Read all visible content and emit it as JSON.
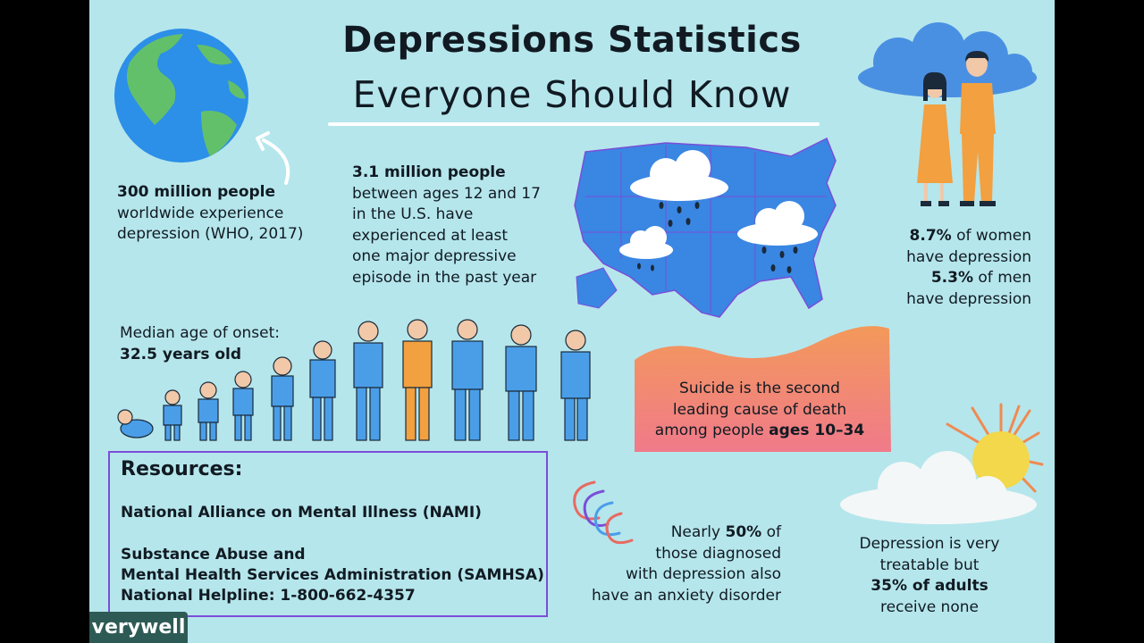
{
  "title": {
    "line1": "Depressions Statistics",
    "line2": "Everyone Should Know"
  },
  "stats": {
    "worldwide": {
      "bold": "300 million people",
      "line2": "worldwide experience",
      "line3": "depression (WHO, 2017)"
    },
    "teens": {
      "bold": "3.1 million people",
      "line2": "between ages 12 and 17",
      "line3": "in the U.S. have",
      "line4": "experienced at least",
      "line5": "one major depressive",
      "line6": "episode in the past year"
    },
    "gender": {
      "women_pct": "8.7%",
      "women_rest": "of women",
      "women_line2": "have depression",
      "men_pct": "5.3%",
      "men_rest": "of men",
      "men_line2": "have depression"
    },
    "onset": {
      "line1": "Median age of onset:",
      "line2": "32.5 years old"
    },
    "suicide": {
      "line1": "Suicide is the second",
      "line2": "leading cause of death",
      "line3_pre": "among people",
      "line3_bold": "ages 10–34"
    },
    "anxiety": {
      "line1_pre": "Nearly",
      "line1_bold": "50%",
      "line1_post": "of",
      "line2": "those diagnosed",
      "line3": "with depression also",
      "line4": "have an anxiety disorder"
    },
    "treatable": {
      "line1": "Depression is very",
      "line2": "treatable but",
      "line3_bold": "35% of adults",
      "line4": "receive none"
    }
  },
  "resources": {
    "title": "Resources:",
    "nami": "National Alliance on Mental Illness (NAMI)",
    "samhsa_line1": "Substance Abuse and",
    "samhsa_line2": "Mental Health Services Administration (SAMHSA)",
    "helpline": "National Helpline: 1-800-662-4357"
  },
  "brand": {
    "logo": "verywell"
  },
  "colors": {
    "background": "#b5e6ec",
    "people_blue": "#4a9ee8",
    "people_orange": "#f2a040",
    "box_border": "#7b4ed8",
    "logo_bg": "#2e5a55",
    "sun": "#f2d84a"
  }
}
